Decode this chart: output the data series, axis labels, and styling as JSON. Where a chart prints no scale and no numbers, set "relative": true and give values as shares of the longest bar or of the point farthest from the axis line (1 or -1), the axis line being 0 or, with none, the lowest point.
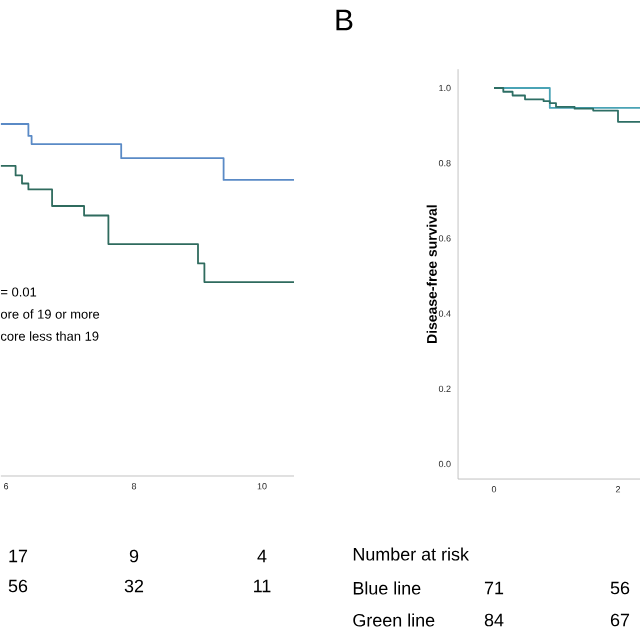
{
  "chart_data": [
    {
      "type": "step",
      "relative": true,
      "xlim": [
        5.92,
        10.5
      ],
      "xticks": [
        6,
        8,
        10
      ],
      "series": [
        {
          "color": "#5a8ac6",
          "x": [
            5.92,
            6.35,
            6.4,
            7.8,
            9.4,
            10.5
          ],
          "values": [
            1.0,
            0.966,
            0.943,
            0.903,
            0.841,
            0.841
          ]
        },
        {
          "color": "#2f6b5e",
          "x": [
            5.92,
            6.15,
            6.25,
            6.35,
            6.72,
            7.22,
            7.6,
            9.0,
            9.1,
            10.5
          ],
          "values": [
            0.881,
            0.854,
            0.831,
            0.814,
            0.767,
            0.74,
            0.659,
            0.604,
            0.551,
            0.551
          ]
        }
      ],
      "annotations": [
        "= 0.01",
        "ore of 19 or more",
        "core less than 19",
        "17",
        "9",
        "4",
        "56",
        "32",
        "11"
      ]
    },
    {
      "type": "step",
      "title": "B",
      "ylabel": "Disease-free survival",
      "xlim": [
        -0.58,
        2.4
      ],
      "ylim": [
        -0.04,
        1.05
      ],
      "xticks": [
        0,
        2
      ],
      "yticks": [
        {
          "value": 0,
          "label": "0.0"
        },
        {
          "value": 0.2,
          "label": "0.2"
        },
        {
          "value": 0.4,
          "label": "0.4"
        },
        {
          "value": 0.6,
          "label": "0.6"
        },
        {
          "value": 0.8,
          "label": "0.8"
        },
        {
          "value": 1,
          "label": "1.0"
        }
      ],
      "series": [
        {
          "color": "#4aa3b5",
          "x": [
            0,
            0.9,
            2.4
          ],
          "values": [
            1.0,
            0.947,
            0.947
          ]
        },
        {
          "color": "#2d6e64",
          "x": [
            0,
            0.15,
            0.3,
            0.5,
            0.8,
            0.9,
            1.0,
            1.3,
            1.6,
            2.0,
            2.4
          ],
          "values": [
            1.0,
            0.99,
            0.98,
            0.97,
            0.965,
            0.96,
            0.95,
            0.945,
            0.94,
            0.91,
            0.91
          ]
        }
      ],
      "annotations": [
        "Number at risk",
        "Blue line",
        "71",
        "56",
        "Green line",
        "84",
        "67"
      ]
    }
  ]
}
